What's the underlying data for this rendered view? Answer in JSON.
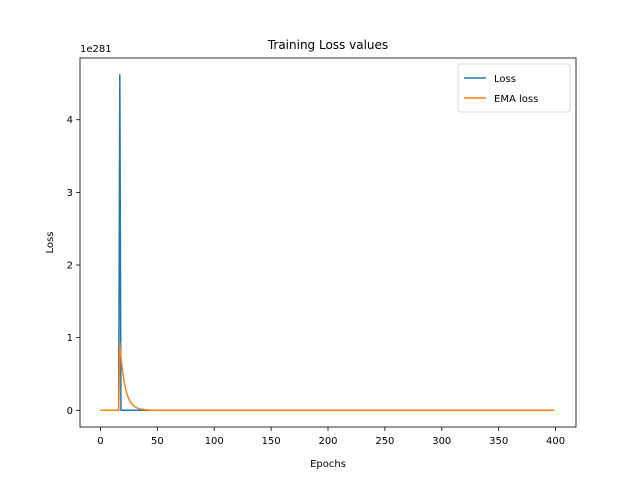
{
  "chart_data": {
    "type": "line",
    "title": "Training Loss values",
    "xlabel": "Epochs",
    "ylabel": "Loss",
    "y_offset_text": "1e281",
    "xlim": [
      -18,
      418
    ],
    "ylim": [
      -0.23,
      4.85
    ],
    "x_ticks": [
      0,
      50,
      100,
      150,
      200,
      250,
      300,
      350,
      400
    ],
    "y_ticks": [
      0,
      1,
      2,
      3,
      4
    ],
    "grid": false,
    "legend_position": "top-right",
    "series": [
      {
        "name": "Loss",
        "color": "#1f77b4",
        "x": [
          0,
          16,
          17,
          18,
          19,
          399
        ],
        "y": [
          0,
          0,
          4.62,
          0,
          0,
          0
        ]
      },
      {
        "name": "EMA loss",
        "color": "#ff7f0e",
        "x": [
          0,
          16,
          17,
          18,
          19,
          20,
          21,
          22,
          23,
          24,
          25,
          26,
          28,
          30,
          32,
          35,
          38,
          42,
          46,
          50,
          60,
          399
        ],
        "y": [
          0,
          0,
          0.924,
          0.739,
          0.591,
          0.473,
          0.378,
          0.303,
          0.242,
          0.194,
          0.155,
          0.124,
          0.079,
          0.051,
          0.033,
          0.017,
          0.009,
          0.004,
          0.001,
          0.0005,
          0,
          0
        ]
      }
    ]
  }
}
